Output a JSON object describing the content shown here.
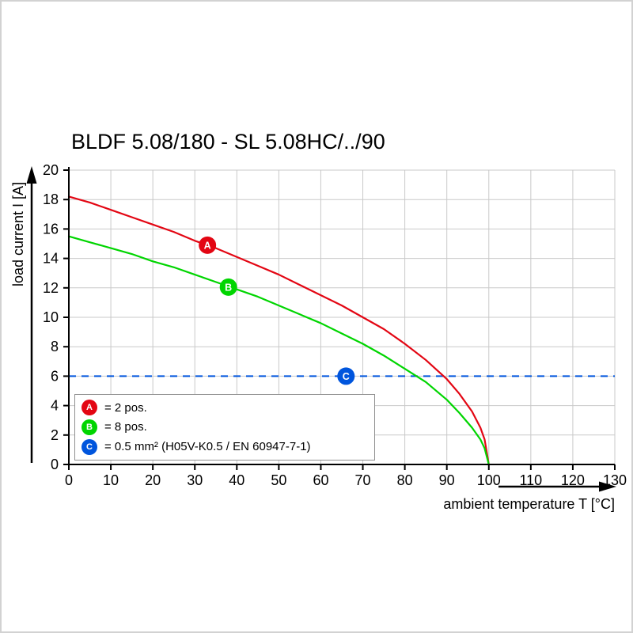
{
  "chart_data": {
    "type": "line",
    "title": "BLDF 5.08/180 - SL 5.08HC/../90",
    "xlabel": "ambient temperature T [°C]",
    "ylabel": "load current I [A]",
    "xlim": [
      0,
      130
    ],
    "ylim": [
      0,
      20
    ],
    "xticks": [
      0,
      10,
      20,
      30,
      40,
      50,
      60,
      70,
      80,
      90,
      100,
      110,
      120,
      130
    ],
    "yticks": [
      0,
      2,
      4,
      6,
      8,
      10,
      12,
      14,
      16,
      18,
      20
    ],
    "grid": true,
    "grid_color": "#c9c9c9",
    "axis_color": "#000000",
    "legend_position": "inside-bottom-left",
    "series": [
      {
        "name": "A",
        "legend_label": "= 2 pos.",
        "color": "#e30613",
        "type": "curve",
        "x": [
          0,
          5,
          10,
          15,
          20,
          25,
          30,
          35,
          40,
          45,
          50,
          55,
          60,
          65,
          70,
          75,
          80,
          85,
          90,
          93,
          96,
          98,
          99,
          100
        ],
        "y": [
          18.2,
          17.8,
          17.3,
          16.8,
          16.3,
          15.8,
          15.2,
          14.7,
          14.1,
          13.5,
          12.9,
          12.2,
          11.5,
          10.8,
          10.0,
          9.2,
          8.2,
          7.1,
          5.8,
          4.8,
          3.6,
          2.5,
          1.7,
          0
        ],
        "marker_at": {
          "x": 33,
          "y": 14.9
        }
      },
      {
        "name": "B",
        "legend_label": "= 8 pos.",
        "color": "#00d500",
        "type": "curve",
        "x": [
          0,
          5,
          10,
          15,
          20,
          25,
          30,
          35,
          40,
          45,
          50,
          55,
          60,
          65,
          70,
          75,
          80,
          85,
          90,
          93,
          96,
          98,
          99,
          100
        ],
        "y": [
          15.5,
          15.1,
          14.7,
          14.3,
          13.8,
          13.4,
          12.9,
          12.4,
          11.9,
          11.4,
          10.8,
          10.2,
          9.6,
          8.9,
          8.2,
          7.4,
          6.5,
          5.6,
          4.4,
          3.5,
          2.5,
          1.7,
          1.1,
          0
        ],
        "marker_at": {
          "x": 38,
          "y": 12.05
        }
      },
      {
        "name": "C",
        "legend_label": "= 0.5 mm² (H05V-K0.5 / EN 60947-7-1)",
        "color": "#0055dd",
        "type": "dashed-hline",
        "y_value": 6,
        "marker_at": {
          "x": 66,
          "y": 6
        }
      }
    ]
  }
}
